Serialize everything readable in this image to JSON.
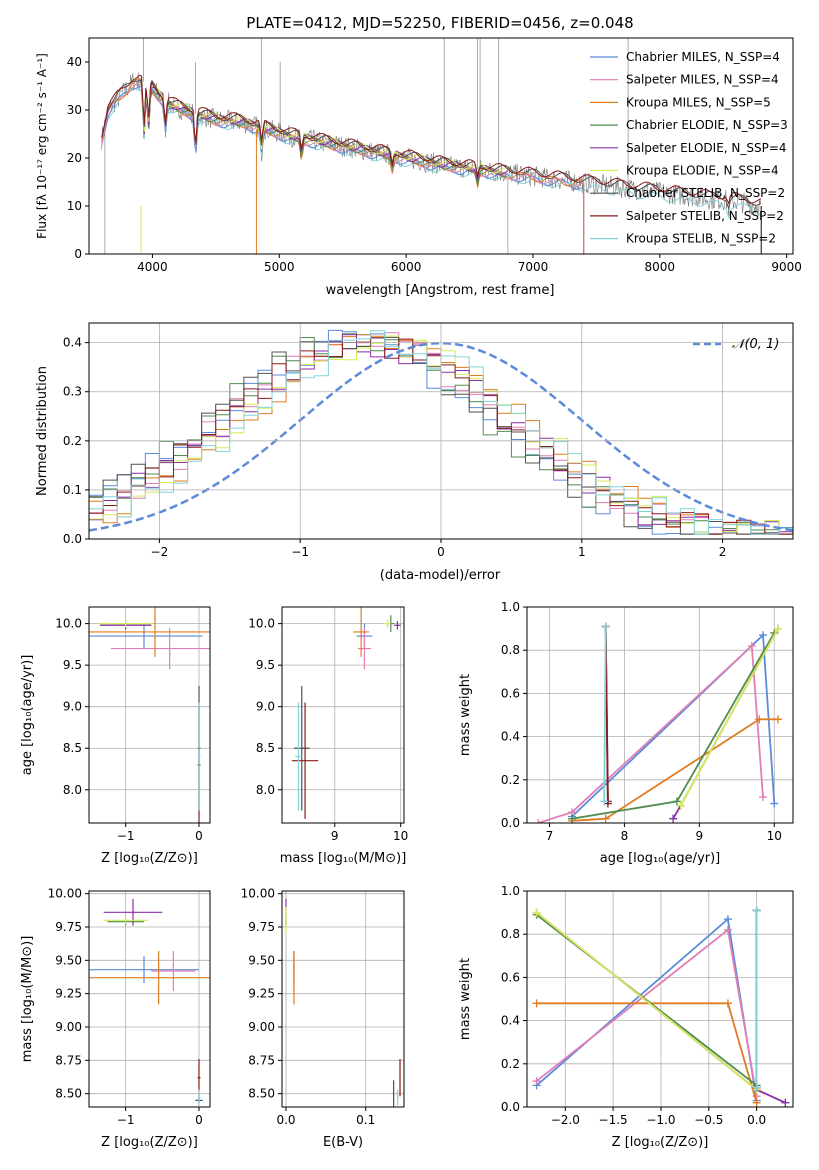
{
  "colors": {
    "chabrier_miles": "#5b8bd9",
    "salpeter_miles": "#e17eb6",
    "kroupa_miles": "#e07b1f",
    "chabrier_elodie": "#4f8c4f",
    "salpeter_elodie": "#8a2fa8",
    "kroupa_elodie": "#d4ee55",
    "chabrier_stelib": "#505050",
    "salpeter_stelib": "#8b1a1a",
    "kroupa_stelib": "#82d2dc",
    "normal_curve": "#5b8bd9",
    "grid": "#b0b0b0"
  },
  "chart_data": [
    {
      "id": "spectrum",
      "type": "line",
      "title": "PLATE=0412, MJD=52250, FIBERID=0456, z=0.048",
      "xlabel": "wavelength [Angstrom, rest frame]",
      "ylabel": "Flux [fλ 10⁻¹⁷ erg cm⁻² s⁻¹ A⁻¹]",
      "xlim": [
        3500,
        9050
      ],
      "ylim": [
        0,
        45
      ],
      "xticks": [
        4000,
        5000,
        6000,
        7000,
        8000,
        9000
      ],
      "yticks": [
        0,
        10,
        20,
        30,
        40
      ],
      "legend": "top-right",
      "series": [
        {
          "name": "Chabrier MILES, N_SSP=4",
          "key": "chabrier_miles"
        },
        {
          "name": "Salpeter MILES, N_SSP=4",
          "key": "salpeter_miles"
        },
        {
          "name": "Kroupa MILES, N_SSP=5",
          "key": "kroupa_miles"
        },
        {
          "name": "Chabrier ELODIE, N_SSP=3",
          "key": "chabrier_elodie"
        },
        {
          "name": "Salpeter ELODIE, N_SSP=4",
          "key": "salpeter_elodie"
        },
        {
          "name": "Kroupa ELODIE, N_SSP=4",
          "key": "kroupa_elodie"
        },
        {
          "name": "Chabrier STELIB, N_SSP=2",
          "key": "chabrier_stelib"
        },
        {
          "name": "Salpeter STELIB, N_SSP=2",
          "key": "salpeter_stelib"
        },
        {
          "name": "Kroupa STELIB, N_SSP=2",
          "key": "kroupa_stelib"
        }
      ],
      "continuum": [
        [
          3600,
          24
        ],
        [
          3650,
          30
        ],
        [
          3750,
          33
        ],
        [
          3850,
          36
        ],
        [
          3950,
          36
        ],
        [
          4050,
          33
        ],
        [
          4150,
          31
        ],
        [
          4300,
          29.5
        ],
        [
          4500,
          28
        ],
        [
          4700,
          27.5
        ],
        [
          4900,
          26
        ],
        [
          5100,
          24.5
        ],
        [
          5300,
          23.5
        ],
        [
          5500,
          22.5
        ],
        [
          5800,
          21
        ],
        [
          6000,
          20
        ],
        [
          6300,
          18.5
        ],
        [
          6600,
          17.5
        ],
        [
          6900,
          16.5
        ],
        [
          7200,
          15.5
        ],
        [
          7500,
          14.5
        ],
        [
          7800,
          13.5
        ],
        [
          8100,
          12.5
        ],
        [
          8400,
          11.5
        ],
        [
          8600,
          11
        ],
        [
          8800,
          10
        ]
      ]
    },
    {
      "id": "residuals",
      "type": "line",
      "xlabel": "(data-model)/error",
      "ylabel": "Normed distribution",
      "xlim": [
        -2.5,
        2.5
      ],
      "ylim": [
        0,
        0.44
      ],
      "xticks": [
        -2,
        -1,
        0,
        1,
        2
      ],
      "yticks": [
        0.0,
        0.1,
        0.2,
        0.3,
        0.4
      ],
      "grid": true,
      "legend": "top-right",
      "normal_label": "𝒩(0, 1)"
    },
    {
      "id": "age_vs_Z",
      "type": "scatter",
      "xlabel": "Z [log₁₀(Z/Z⊙)]",
      "ylabel": "age  [log₁₀(age/yr)]",
      "xlim": [
        -1.5,
        0.15
      ],
      "ylim": [
        7.6,
        10.2
      ],
      "xticks": [
        -1,
        0
      ],
      "yticks": [
        8.0,
        8.5,
        9.0,
        9.5,
        10.0
      ],
      "grid": true,
      "points": [
        {
          "key": "chabrier_miles",
          "x": -0.75,
          "y": 9.85,
          "xerr": 0.8,
          "yerr": 0.15
        },
        {
          "key": "salpeter_miles",
          "x": -0.4,
          "y": 9.7,
          "xerr": 0.8,
          "yerr": 0.25
        },
        {
          "key": "kroupa_miles",
          "x": -0.6,
          "y": 9.9,
          "xerr": 0.9,
          "yerr": 0.3
        },
        {
          "key": "chabrier_elodie",
          "x": -1.0,
          "y": 10.0,
          "xerr": 0.35,
          "yerr": 0.05
        },
        {
          "key": "salpeter_elodie",
          "x": -1.0,
          "y": 9.98,
          "xerr": 0.35,
          "yerr": 0.05
        },
        {
          "key": "kroupa_elodie",
          "x": -1.0,
          "y": 10.0,
          "xerr": 0.35,
          "yerr": 0.05
        },
        {
          "key": "chabrier_stelib",
          "x": 0.0,
          "y": 8.5,
          "xerr": 0.02,
          "yerr": 0.75
        },
        {
          "key": "salpeter_stelib",
          "x": 0.0,
          "y": 8.3,
          "xerr": 0.02,
          "yerr": 0.7
        },
        {
          "key": "kroupa_stelib",
          "x": 0.0,
          "y": 8.4,
          "xerr": 0.02,
          "yerr": 0.65
        }
      ]
    },
    {
      "id": "age_vs_mass",
      "type": "scatter",
      "xlabel": "mass [log₁₀(M/M⊙)]",
      "ylabel": "",
      "xlim": [
        8.2,
        10.05
      ],
      "ylim": [
        7.6,
        10.2
      ],
      "xticks": [
        8,
        9,
        10
      ],
      "yticks": [
        8.0,
        8.5,
        9.0,
        9.5,
        10.0
      ],
      "grid": true,
      "points": [
        {
          "key": "chabrier_miles",
          "x": 9.45,
          "y": 9.85,
          "xerr": 0.12,
          "yerr": 0.15
        },
        {
          "key": "salpeter_miles",
          "x": 9.45,
          "y": 9.7,
          "xerr": 0.1,
          "yerr": 0.25
        },
        {
          "key": "kroupa_miles",
          "x": 9.4,
          "y": 9.9,
          "xerr": 0.12,
          "yerr": 0.3
        },
        {
          "key": "chabrier_elodie",
          "x": 9.85,
          "y": 10.0,
          "xerr": 0.05,
          "yerr": 0.1
        },
        {
          "key": "salpeter_elodie",
          "x": 9.95,
          "y": 9.98,
          "xerr": 0.05,
          "yerr": 0.05
        },
        {
          "key": "kroupa_elodie",
          "x": 9.8,
          "y": 10.0,
          "xerr": 0.05,
          "yerr": 0.05
        },
        {
          "key": "chabrier_stelib",
          "x": 8.5,
          "y": 8.5,
          "xerr": 0.12,
          "yerr": 0.75
        },
        {
          "key": "salpeter_stelib",
          "x": 8.55,
          "y": 8.35,
          "xerr": 0.2,
          "yerr": 0.7
        },
        {
          "key": "kroupa_stelib",
          "x": 8.45,
          "y": 8.4,
          "xerr": 0.05,
          "yerr": 0.65
        }
      ]
    },
    {
      "id": "weight_vs_age",
      "type": "line",
      "xlabel": "age  [log₁₀(age/yr)]",
      "ylabel": "mass weight",
      "xlim": [
        6.7,
        10.25
      ],
      "ylim": [
        0,
        1
      ],
      "xticks": [
        7,
        8,
        9,
        10
      ],
      "yticks": [
        0.0,
        0.2,
        0.4,
        0.6,
        0.8,
        1.0
      ],
      "grid": true,
      "series": [
        {
          "key": "chabrier_miles",
          "x": [
            7.3,
            9.85,
            10.0
          ],
          "y": [
            0.03,
            0.87,
            0.09
          ]
        },
        {
          "key": "salpeter_miles",
          "x": [
            6.85,
            7.3,
            9.7,
            9.85
          ],
          "y": [
            0.0,
            0.05,
            0.82,
            0.12
          ]
        },
        {
          "key": "kroupa_miles",
          "x": [
            7.3,
            7.75,
            9.8,
            10.05
          ],
          "y": [
            0.01,
            0.02,
            0.48,
            0.48
          ]
        },
        {
          "key": "chabrier_elodie",
          "x": [
            7.3,
            8.7,
            10.0
          ],
          "y": [
            0.02,
            0.1,
            0.88
          ]
        },
        {
          "key": "salpeter_elodie",
          "x": [
            8.65,
            8.75,
            10.05
          ],
          "y": [
            0.02,
            0.08,
            0.9
          ]
        },
        {
          "key": "kroupa_elodie",
          "x": [
            8.75,
            10.05
          ],
          "y": [
            0.08,
            0.9
          ]
        },
        {
          "key": "chabrier_stelib",
          "x": [
            7.75,
            7.78
          ],
          "y": [
            0.91,
            0.1
          ]
        },
        {
          "key": "salpeter_stelib",
          "x": [
            7.75,
            7.78
          ],
          "y": [
            0.91,
            0.09
          ]
        },
        {
          "key": "kroupa_stelib",
          "x": [
            7.73,
            7.75
          ],
          "y": [
            0.1,
            0.91
          ]
        }
      ]
    },
    {
      "id": "mass_vs_Z",
      "type": "scatter",
      "xlabel": "Z [log₁₀(Z/Z⊙)]",
      "ylabel": "mass [log₁₀(M/M⊙)]",
      "xlim": [
        -1.5,
        0.15
      ],
      "ylim": [
        8.4,
        10.02
      ],
      "xticks": [
        -1,
        0
      ],
      "yticks": [
        8.5,
        8.75,
        9.0,
        9.25,
        9.5,
        9.75,
        10.0
      ],
      "grid": true,
      "points": [
        {
          "key": "chabrier_miles",
          "x": -0.75,
          "y": 9.43,
          "xerr": 0.75,
          "yerr": 0.1
        },
        {
          "key": "salpeter_miles",
          "x": -0.35,
          "y": 9.42,
          "xerr": 0.3,
          "yerr": 0.15
        },
        {
          "key": "kroupa_miles",
          "x": -0.55,
          "y": 9.37,
          "xerr": 0.95,
          "yerr": 0.2
        },
        {
          "key": "chabrier_elodie",
          "x": -1.0,
          "y": 9.79,
          "xerr": 0.25,
          "yerr": 0.03
        },
        {
          "key": "salpeter_elodie",
          "x": -0.9,
          "y": 9.86,
          "xerr": 0.4,
          "yerr": 0.1
        },
        {
          "key": "kroupa_elodie",
          "x": -1.0,
          "y": 9.8,
          "xerr": 0.3,
          "yerr": 0.03
        },
        {
          "key": "chabrier_stelib",
          "x": 0.0,
          "y": 8.45,
          "xerr": 0.05,
          "yerr": 0.02
        },
        {
          "key": "salpeter_stelib",
          "x": 0.0,
          "y": 8.62,
          "xerr": 0.02,
          "yerr": 0.14
        },
        {
          "key": "kroupa_stelib",
          "x": 0.0,
          "y": 8.47,
          "xerr": 0.02,
          "yerr": 0.06
        }
      ]
    },
    {
      "id": "mass_vs_ebv",
      "type": "scatter",
      "xlabel": "E(B-V)",
      "ylabel": "",
      "xlim": [
        -0.005,
        0.148
      ],
      "ylim": [
        8.4,
        10.02
      ],
      "xticks": [
        0.0,
        0.1
      ],
      "yticks": [
        8.5,
        8.75,
        9.0,
        9.25,
        9.5,
        9.75,
        10.0
      ],
      "grid": true,
      "points": [
        {
          "key": "chabrier_miles",
          "x": 0.01,
          "y": 9.43,
          "xerr": 0.0,
          "yerr": 0.1
        },
        {
          "key": "salpeter_miles",
          "x": 0.01,
          "y": 9.42,
          "xerr": 0.0,
          "yerr": 0.15
        },
        {
          "key": "kroupa_miles",
          "x": 0.01,
          "y": 9.37,
          "xerr": 0.0,
          "yerr": 0.2
        },
        {
          "key": "chabrier_elodie",
          "x": 0.0,
          "y": 9.79,
          "xerr": 0.0,
          "yerr": 0.03
        },
        {
          "key": "salpeter_elodie",
          "x": 0.0,
          "y": 9.86,
          "xerr": 0.0,
          "yerr": 0.1
        },
        {
          "key": "kroupa_elodie",
          "x": 0.0,
          "y": 9.8,
          "xerr": 0.0,
          "yerr": 0.1
        },
        {
          "key": "chabrier_stelib",
          "x": 0.135,
          "y": 8.5,
          "xerr": 0.0,
          "yerr": 0.1
        },
        {
          "key": "salpeter_stelib",
          "x": 0.143,
          "y": 8.62,
          "xerr": 0.0,
          "yerr": 0.14
        },
        {
          "key": "kroupa_stelib",
          "x": 0.14,
          "y": 8.47,
          "xerr": 0.0,
          "yerr": 0.06
        }
      ]
    },
    {
      "id": "weight_vs_Z",
      "type": "line",
      "xlabel": "Z [log₁₀(Z/Z⊙)]",
      "ylabel": "mass weight",
      "xlim": [
        -2.4,
        0.38
      ],
      "ylim": [
        0,
        1
      ],
      "xticks": [
        -2.0,
        -1.5,
        -1.0,
        -0.5,
        0.0
      ],
      "yticks": [
        0.0,
        0.2,
        0.4,
        0.6,
        0.8,
        1.0
      ],
      "grid": true,
      "series": [
        {
          "key": "chabrier_miles",
          "x": [
            -2.3,
            -0.3,
            0.0
          ],
          "y": [
            0.1,
            0.87,
            0.03
          ]
        },
        {
          "key": "salpeter_miles",
          "x": [
            -2.3,
            -0.3,
            0.0
          ],
          "y": [
            0.12,
            0.82,
            0.05
          ]
        },
        {
          "key": "kroupa_miles",
          "x": [
            -2.3,
            -0.3,
            0.0
          ],
          "y": [
            0.48,
            0.48,
            0.02
          ]
        },
        {
          "key": "chabrier_elodie",
          "x": [
            -2.3,
            0.0
          ],
          "y": [
            0.89,
            0.1
          ]
        },
        {
          "key": "salpeter_elodie",
          "x": [
            -2.3,
            0.0,
            0.3
          ],
          "y": [
            0.9,
            0.08,
            0.02
          ]
        },
        {
          "key": "kroupa_elodie",
          "x": [
            -2.3,
            0.0
          ],
          "y": [
            0.9,
            0.08
          ]
        },
        {
          "key": "chabrier_stelib",
          "x": [
            0.0,
            0.0
          ],
          "y": [
            0.91,
            0.09
          ]
        },
        {
          "key": "salpeter_stelib",
          "x": [
            0.0,
            0.0
          ],
          "y": [
            0.91,
            0.09
          ]
        },
        {
          "key": "kroupa_stelib",
          "x": [
            0.0,
            0.0
          ],
          "y": [
            0.91,
            0.09
          ]
        }
      ]
    }
  ]
}
